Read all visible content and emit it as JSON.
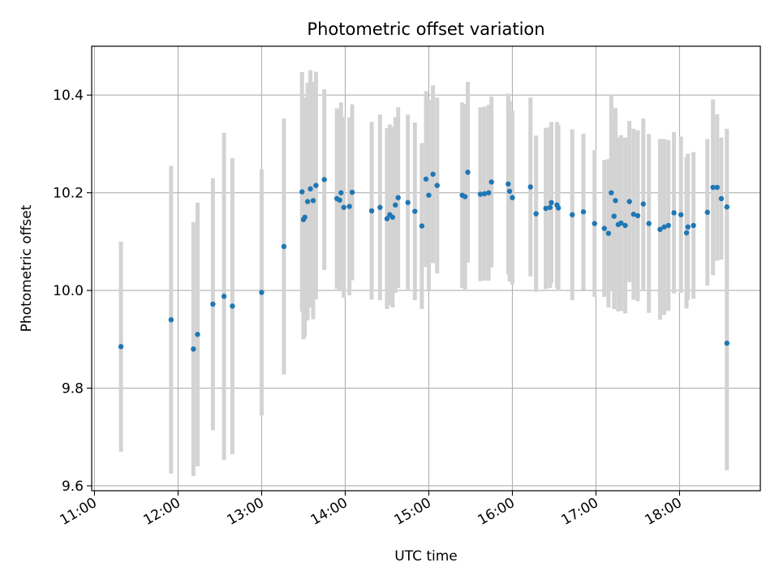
{
  "chart_data": {
    "type": "scatter",
    "title": "Photometric offset variation",
    "xlabel": "UTC time",
    "ylabel": "Photometric offset",
    "grid": true,
    "xlim": [
      "10:58",
      "18:58"
    ],
    "ylim": [
      9.59,
      10.5
    ],
    "x_ticks": [
      "11:00",
      "12:00",
      "13:00",
      "14:00",
      "15:00",
      "16:00",
      "17:00",
      "18:00"
    ],
    "y_ticks": [
      "9.6",
      "9.8",
      "10.0",
      "10.2",
      "10.4"
    ],
    "colors": {
      "points": "#1f77b4",
      "error_bars": "#d3d3d3",
      "grid": "#b0b0b0"
    },
    "series": [
      {
        "x": [
          "11:19",
          "11:55",
          "12:11",
          "12:14",
          "12:25",
          "12:33",
          "12:39",
          "13:00",
          "13:16",
          "13:29",
          "13:30",
          "13:31",
          "13:33",
          "13:35",
          "13:37",
          "13:39",
          "13:45",
          "13:54",
          "13:56",
          "13:57",
          "13:59",
          "14:03",
          "14:05",
          "14:19",
          "14:25",
          "14:30",
          "14:32",
          "14:34",
          "14:36",
          "14:38",
          "14:45",
          "14:50",
          "14:55",
          "14:58",
          "15:00",
          "15:03",
          "15:06",
          "15:24",
          "15:26",
          "15:28",
          "15:37",
          "15:40",
          "15:43",
          "15:45",
          "15:57",
          "15:58",
          "16:00",
          "16:13",
          "16:17",
          "16:24",
          "16:27",
          "16:28",
          "16:32",
          "16:33",
          "16:43",
          "16:51",
          "16:59",
          "17:06",
          "17:09",
          "17:11",
          "17:13",
          "17:14",
          "17:16",
          "17:18",
          "17:21",
          "17:24",
          "17:27",
          "17:30",
          "17:34",
          "17:38",
          "17:46",
          "17:49",
          "17:52",
          "17:56",
          "18:01",
          "18:05",
          "18:06",
          "18:10",
          "18:20",
          "18:24",
          "18:27",
          "18:30",
          "18:34"
        ],
        "y": [
          9.885,
          9.94,
          9.88,
          9.91,
          9.972,
          9.988,
          9.968,
          9.996,
          10.09,
          10.202,
          10.145,
          10.15,
          10.182,
          10.208,
          10.184,
          10.215,
          10.227,
          10.188,
          10.185,
          10.2,
          10.17,
          10.172,
          10.201,
          10.163,
          10.17,
          10.147,
          10.155,
          10.15,
          10.175,
          10.19,
          10.18,
          10.162,
          10.132,
          10.228,
          10.195,
          10.238,
          10.215,
          10.195,
          10.192,
          10.242,
          10.197,
          10.198,
          10.2,
          10.222,
          10.218,
          10.203,
          10.19,
          10.212,
          10.157,
          10.168,
          10.17,
          10.18,
          10.175,
          10.169,
          10.155,
          10.161,
          10.137,
          10.127,
          10.117,
          10.2,
          10.152,
          10.184,
          10.135,
          10.138,
          10.133,
          10.182,
          10.156,
          10.153,
          10.177,
          10.137,
          10.125,
          10.13,
          10.133,
          10.159,
          10.155,
          10.118,
          10.13,
          10.133,
          10.16,
          10.211,
          10.211,
          10.188,
          10.171
        ],
        "err": [
          0.215,
          0.315,
          0.26,
          0.27,
          0.258,
          0.335,
          0.303,
          0.252,
          0.262,
          0.245,
          0.245,
          0.245,
          0.243,
          0.243,
          0.243,
          0.233,
          0.185,
          0.185,
          0.185,
          0.185,
          0.185,
          0.182,
          0.18,
          0.182,
          0.19,
          0.185,
          0.185,
          0.185,
          0.18,
          0.185,
          0.18,
          0.182,
          0.17,
          0.18,
          0.195,
          0.182,
          0.18,
          0.19,
          0.19,
          0.185,
          0.178,
          0.178,
          0.18,
          0.175,
          0.185,
          0.185,
          0.178,
          0.183,
          0.16,
          0.165,
          0.165,
          0.165,
          0.17,
          0.17,
          0.175,
          0.16,
          0.15,
          0.14,
          0.152,
          0.2,
          0.19,
          0.19,
          0.178,
          0.18,
          0.18,
          0.165,
          0.175,
          0.175,
          0.175,
          0.183,
          0.185,
          0.18,
          0.175,
          0.165,
          0.16,
          0.155,
          0.15,
          0.15,
          0.15,
          0.18,
          0.15,
          0.125,
          0.16
        ]
      },
      {
        "x": [
          "18:34"
        ],
        "y": [
          9.892
        ],
        "err": [
          0.26
        ]
      }
    ]
  }
}
